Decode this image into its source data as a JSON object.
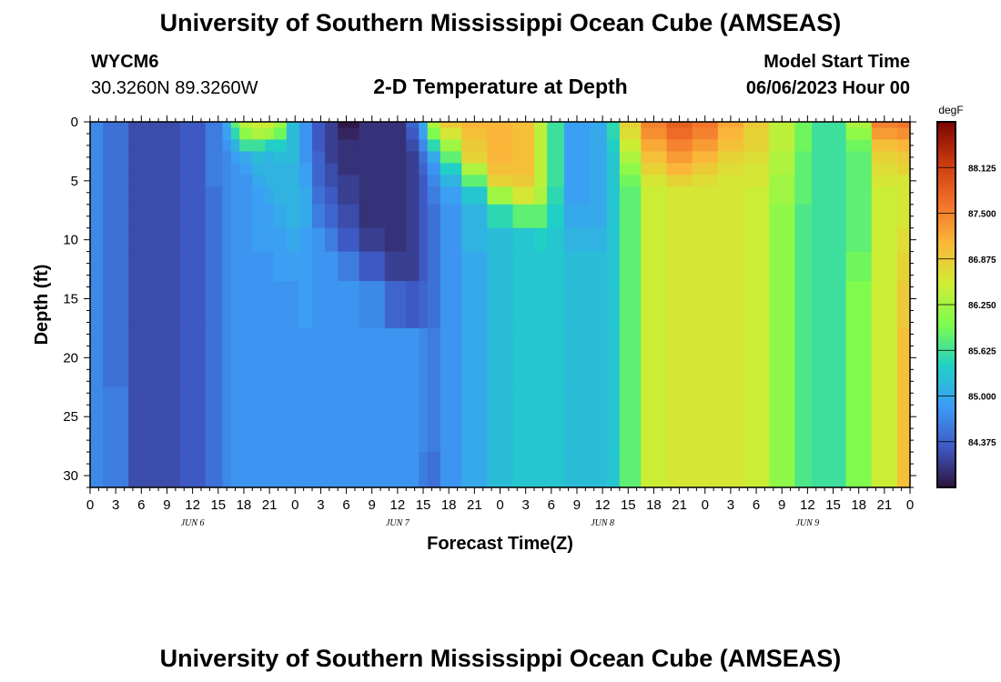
{
  "header": {
    "title": "University of Southern Mississippi Ocean Cube (AMSEAS)",
    "station": "WYCM6",
    "location": "30.3260N  89.3260W",
    "subtitle": "2-D Temperature at Depth",
    "model_start_label": "Model Start Time",
    "model_start_value": "06/06/2023 Hour 00"
  },
  "footer": {
    "title_repeat": "University of Southern Mississippi Ocean Cube (AMSEAS)"
  },
  "chart_data": {
    "type": "heatmap",
    "title": "2-D Temperature at Depth",
    "xlabel": "Forecast Time(Z)",
    "ylabel": "Depth (ft)",
    "x_tick_labels": [
      "0",
      "3",
      "6",
      "9",
      "12",
      "15",
      "18",
      "21",
      "0",
      "3",
      "6",
      "9",
      "12",
      "15",
      "18",
      "21",
      "0",
      "3",
      "6",
      "9",
      "12",
      "15",
      "18",
      "21",
      "0",
      "3",
      "6",
      "9",
      "12",
      "15",
      "18",
      "21",
      "0"
    ],
    "day_labels": [
      "JUN 6",
      "JUN 7",
      "JUN 8",
      "JUN 9"
    ],
    "xlim_hours": [
      0,
      96
    ],
    "y_ticks": [
      0,
      5,
      10,
      15,
      20,
      25,
      30
    ],
    "ylim": [
      0,
      31
    ],
    "y_inverted": true,
    "colorbar": {
      "unit": "degF",
      "ticks": [
        "88.125",
        "87.500",
        "86.875",
        "86.250",
        "85.625",
        "85.000",
        "84.375"
      ],
      "range": [
        83.75,
        88.75
      ],
      "colors": [
        "#30123b",
        "#3e5ac4",
        "#3d9cf7",
        "#1fd1c4",
        "#7cfc4e",
        "#cfed34",
        "#fbb839",
        "#f2702a",
        "#c93a0e",
        "#7a0403"
      ]
    },
    "depth_levels": [
      0,
      1,
      2,
      3,
      4,
      5,
      6,
      8,
      10,
      12,
      15,
      20,
      25,
      31
    ],
    "profile_hours": [
      0,
      3,
      6,
      9,
      12,
      15,
      16,
      17,
      18,
      20,
      21,
      22,
      24,
      25,
      27,
      28,
      30,
      33,
      36,
      38,
      39,
      40,
      42,
      45,
      48,
      51,
      53,
      54,
      57,
      60,
      61,
      63,
      66,
      69,
      72,
      75,
      78,
      81,
      84,
      85,
      87,
      90,
      93,
      96
    ],
    "temperature_profiles": [
      [
        84.7,
        84.7,
        84.7,
        84.7,
        84.7,
        84.7,
        84.7,
        84.7,
        84.7,
        84.7,
        84.7,
        84.7,
        84.7,
        84.7
      ],
      [
        84.5,
        84.5,
        84.5,
        84.5,
        84.5,
        84.5,
        84.5,
        84.5,
        84.5,
        84.5,
        84.5,
        84.5,
        84.6,
        84.6
      ],
      [
        84.2,
        84.2,
        84.2,
        84.2,
        84.2,
        84.2,
        84.2,
        84.2,
        84.2,
        84.2,
        84.2,
        84.2,
        84.2,
        84.2
      ],
      [
        84.2,
        84.2,
        84.2,
        84.2,
        84.2,
        84.2,
        84.2,
        84.2,
        84.2,
        84.2,
        84.2,
        84.2,
        84.2,
        84.2
      ],
      [
        84.3,
        84.3,
        84.3,
        84.3,
        84.3,
        84.3,
        84.3,
        84.3,
        84.3,
        84.3,
        84.3,
        84.3,
        84.3,
        84.3
      ],
      [
        84.6,
        84.6,
        84.6,
        84.6,
        84.6,
        84.6,
        84.5,
        84.5,
        84.5,
        84.5,
        84.5,
        84.5,
        84.5,
        84.5
      ],
      [
        85.0,
        84.9,
        84.8,
        84.7,
        84.7,
        84.7,
        84.7,
        84.7,
        84.7,
        84.7,
        84.7,
        84.7,
        84.7,
        84.7
      ],
      [
        85.8,
        85.5,
        85.1,
        84.9,
        84.8,
        84.8,
        84.8,
        84.8,
        84.8,
        84.8,
        84.8,
        84.8,
        84.8,
        84.8
      ],
      [
        86.4,
        86.1,
        85.6,
        85.0,
        84.9,
        84.8,
        84.8,
        84.8,
        84.8,
        84.8,
        84.8,
        84.8,
        84.8,
        84.8
      ],
      [
        86.5,
        86.3,
        85.6,
        85.2,
        85.1,
        85.0,
        84.9,
        84.9,
        84.9,
        84.8,
        84.8,
        84.8,
        84.8,
        84.8
      ],
      [
        86.5,
        86.2,
        85.4,
        85.1,
        85.1,
        85.1,
        85.0,
        84.9,
        84.9,
        84.8,
        84.8,
        84.8,
        84.8,
        84.8
      ],
      [
        86.2,
        85.9,
        85.4,
        85.2,
        85.1,
        85.1,
        85.1,
        85.0,
        84.9,
        84.9,
        84.8,
        84.8,
        84.8,
        84.8
      ],
      [
        85.2,
        85.2,
        85.2,
        85.2,
        85.1,
        85.1,
        85.1,
        85.1,
        85.0,
        84.9,
        84.8,
        84.8,
        84.8,
        84.8
      ],
      [
        84.8,
        84.8,
        84.8,
        84.8,
        84.9,
        84.9,
        85.0,
        85.0,
        84.9,
        84.9,
        84.9,
        84.8,
        84.8,
        84.8
      ],
      [
        84.3,
        84.3,
        84.3,
        84.4,
        84.4,
        84.4,
        84.5,
        84.6,
        84.8,
        84.8,
        84.8,
        84.8,
        84.8,
        84.8
      ],
      [
        84.1,
        84.1,
        84.1,
        84.1,
        84.2,
        84.2,
        84.3,
        84.4,
        84.6,
        84.8,
        84.8,
        84.8,
        84.8,
        84.8
      ],
      [
        83.8,
        83.9,
        84.0,
        84.0,
        84.0,
        84.1,
        84.1,
        84.2,
        84.3,
        84.6,
        84.8,
        84.8,
        84.8,
        84.8
      ],
      [
        84.0,
        84.0,
        84.0,
        84.0,
        84.0,
        84.0,
        84.0,
        84.0,
        84.1,
        84.3,
        84.7,
        84.8,
        84.8,
        84.8
      ],
      [
        84.0,
        84.0,
        84.0,
        84.0,
        84.0,
        84.0,
        84.0,
        84.0,
        84.0,
        84.1,
        84.4,
        84.8,
        84.8,
        84.8
      ],
      [
        84.4,
        84.3,
        84.2,
        84.1,
        84.1,
        84.1,
        84.1,
        84.1,
        84.1,
        84.1,
        84.3,
        84.8,
        84.8,
        84.8
      ],
      [
        85.0,
        84.9,
        84.7,
        84.5,
        84.4,
        84.3,
        84.3,
        84.3,
        84.3,
        84.3,
        84.4,
        84.7,
        84.7,
        84.6
      ],
      [
        86.3,
        86.0,
        85.5,
        85.0,
        84.8,
        84.7,
        84.6,
        84.5,
        84.5,
        84.5,
        84.5,
        84.6,
        84.6,
        84.5
      ],
      [
        86.9,
        86.6,
        86.2,
        85.8,
        85.4,
        85.1,
        84.9,
        84.8,
        84.8,
        84.8,
        84.8,
        84.8,
        84.8,
        84.8
      ],
      [
        87.1,
        87.0,
        86.9,
        86.8,
        86.3,
        85.8,
        85.3,
        85.1,
        85.1,
        85.0,
        85.0,
        85.0,
        85.0,
        85.0
      ],
      [
        87.1,
        87.1,
        87.1,
        87.1,
        87.0,
        86.8,
        86.2,
        85.5,
        85.2,
        85.2,
        85.2,
        85.2,
        85.2,
        85.2
      ],
      [
        87.0,
        87.0,
        87.0,
        87.0,
        87.0,
        86.9,
        86.6,
        85.8,
        85.3,
        85.3,
        85.3,
        85.3,
        85.3,
        85.3
      ],
      [
        86.4,
        86.4,
        86.4,
        86.4,
        86.4,
        86.4,
        86.3,
        85.8,
        85.4,
        85.3,
        85.3,
        85.3,
        85.3,
        85.3
      ],
      [
        85.6,
        85.6,
        85.6,
        85.6,
        85.6,
        85.6,
        85.5,
        85.4,
        85.3,
        85.3,
        85.3,
        85.3,
        85.3,
        85.3
      ],
      [
        84.9,
        84.9,
        84.9,
        84.9,
        84.9,
        84.9,
        84.9,
        85.0,
        85.1,
        85.2,
        85.2,
        85.2,
        85.2,
        85.2
      ],
      [
        85.0,
        85.0,
        85.0,
        85.0,
        85.0,
        85.0,
        85.0,
        85.0,
        85.1,
        85.2,
        85.2,
        85.2,
        85.2,
        85.2
      ],
      [
        85.5,
        85.5,
        85.4,
        85.3,
        85.3,
        85.3,
        85.3,
        85.3,
        85.3,
        85.3,
        85.3,
        85.3,
        85.3,
        85.3
      ],
      [
        86.8,
        86.7,
        86.5,
        86.3,
        86.1,
        85.9,
        85.8,
        85.8,
        85.8,
        85.8,
        85.8,
        85.8,
        85.8,
        85.8
      ],
      [
        87.5,
        87.4,
        87.2,
        87.0,
        86.8,
        86.6,
        86.5,
        86.5,
        86.5,
        86.5,
        86.5,
        86.5,
        86.5,
        86.5
      ],
      [
        87.8,
        87.7,
        87.5,
        87.3,
        87.1,
        86.8,
        86.6,
        86.6,
        86.6,
        86.6,
        86.6,
        86.6,
        86.6,
        86.6
      ],
      [
        87.6,
        87.5,
        87.3,
        87.1,
        86.9,
        86.7,
        86.6,
        86.6,
        86.6,
        86.6,
        86.6,
        86.6,
        86.6,
        86.6
      ],
      [
        87.2,
        87.1,
        87.0,
        86.8,
        86.7,
        86.6,
        86.6,
        86.6,
        86.6,
        86.6,
        86.6,
        86.6,
        86.6,
        86.6
      ],
      [
        86.9,
        86.8,
        86.8,
        86.7,
        86.6,
        86.6,
        86.5,
        86.5,
        86.5,
        86.5,
        86.5,
        86.5,
        86.5,
        86.5
      ],
      [
        86.4,
        86.4,
        86.4,
        86.3,
        86.3,
        86.2,
        86.2,
        86.1,
        86.1,
        86.1,
        86.1,
        86.1,
        86.1,
        86.1
      ],
      [
        85.9,
        85.9,
        85.9,
        85.8,
        85.8,
        85.8,
        85.8,
        85.7,
        85.7,
        85.7,
        85.7,
        85.7,
        85.7,
        85.7
      ],
      [
        85.6,
        85.6,
        85.6,
        85.6,
        85.6,
        85.6,
        85.6,
        85.6,
        85.6,
        85.6,
        85.6,
        85.6,
        85.6,
        85.6
      ],
      [
        85.6,
        85.6,
        85.6,
        85.6,
        85.6,
        85.6,
        85.6,
        85.6,
        85.6,
        85.6,
        85.6,
        85.6,
        85.6,
        85.6
      ],
      [
        86.3,
        86.1,
        85.9,
        85.8,
        85.8,
        85.8,
        85.8,
        85.8,
        85.8,
        85.9,
        86.0,
        86.0,
        86.0,
        86.0
      ],
      [
        87.5,
        87.3,
        87.0,
        86.8,
        86.7,
        86.6,
        86.5,
        86.5,
        86.5,
        86.5,
        86.5,
        86.5,
        86.5,
        86.5
      ],
      [
        87.6,
        87.4,
        87.1,
        86.9,
        86.8,
        86.6,
        86.6,
        86.6,
        86.7,
        86.8,
        86.9,
        87.0,
        87.0,
        87.0
      ]
    ]
  }
}
